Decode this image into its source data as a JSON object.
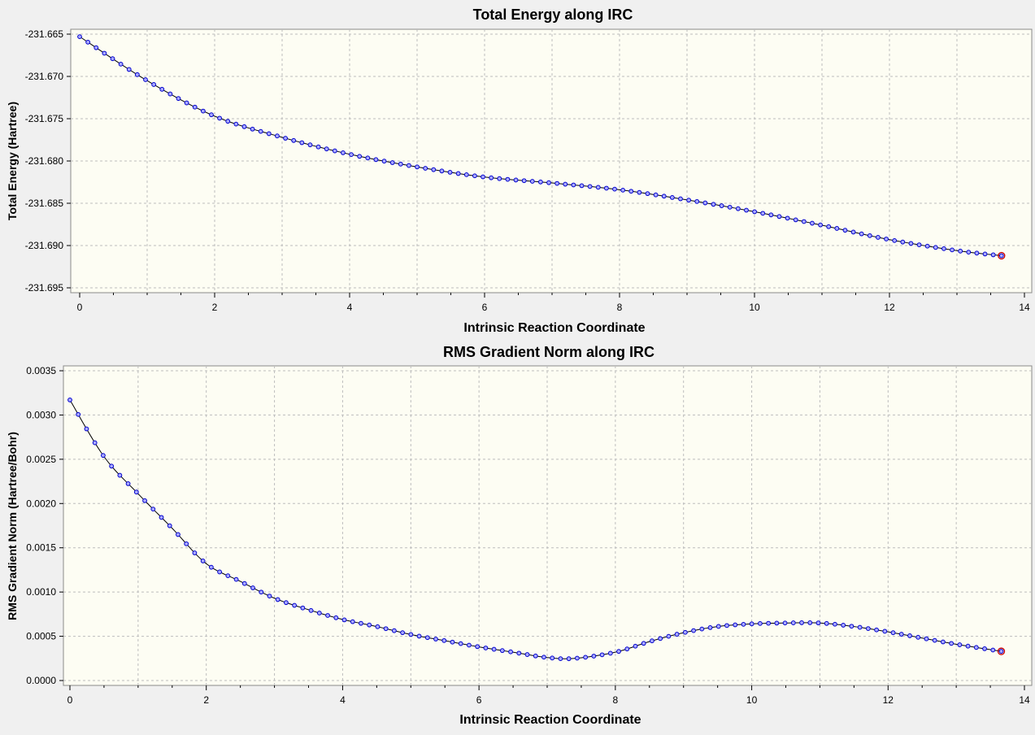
{
  "chart_data": [
    {
      "type": "line",
      "title": "Total Energy along IRC",
      "xlabel": "Intrinsic Reaction Coordinate",
      "ylabel": "Total Energy (Hartree)",
      "xlim": [
        0,
        14
      ],
      "ylim": [
        -231.695,
        -231.665
      ],
      "xticks": [
        0,
        2,
        4,
        6,
        8,
        10,
        12,
        14
      ],
      "xtick_labels": [
        "0",
        "2",
        "4",
        "6",
        "8",
        "10",
        "12",
        "14"
      ],
      "yticks": [
        -231.665,
        -231.67,
        -231.675,
        -231.68,
        -231.685,
        -231.69,
        -231.695
      ],
      "ytick_labels": [
        "-231.665",
        "-231.670",
        "-231.675",
        "-231.680",
        "-231.685",
        "-231.690",
        "-231.695"
      ],
      "grid": true,
      "x": [
        0,
        1,
        2,
        3,
        4,
        5,
        6,
        7,
        8,
        9,
        10,
        11,
        12,
        13,
        13.66
      ],
      "values": [
        -231.6653,
        -231.6705,
        -231.6747,
        -231.6772,
        -231.6792,
        -231.6807,
        -231.6819,
        -231.6826,
        -231.6834,
        -231.6846,
        -231.686,
        -231.6876,
        -231.6893,
        -231.6906,
        -231.6912
      ],
      "highlight": {
        "x": 13.66,
        "y": -231.6912,
        "color": "#cc0000"
      },
      "colors": {
        "line": "#000000",
        "marker_stroke": "#0000cc",
        "marker_fill": "#aaaaff",
        "background": "#fdfdf3"
      }
    },
    {
      "type": "line",
      "title": "RMS Gradient Norm along IRC",
      "xlabel": "Intrinsic Reaction Coordinate",
      "ylabel": "RMS Gradient Norm (Hartree/Bohr)",
      "xlim": [
        0,
        14
      ],
      "ylim": [
        0,
        0.0035
      ],
      "xticks": [
        0,
        2,
        4,
        6,
        8,
        10,
        12,
        14
      ],
      "xtick_labels": [
        "0",
        "2",
        "4",
        "6",
        "8",
        "10",
        "12",
        "14"
      ],
      "yticks": [
        0,
        0.0005,
        0.001,
        0.0015,
        0.002,
        0.0025,
        0.003,
        0.0035
      ],
      "ytick_labels": [
        "0.0000",
        "0.0005",
        "0.0010",
        "0.0015",
        "0.0020",
        "0.0025",
        "0.0030",
        "0.0035"
      ],
      "grid": true,
      "x": [
        0,
        0.5,
        1,
        1.5,
        2,
        2.5,
        3,
        3.5,
        4,
        4.5,
        5,
        5.5,
        6,
        6.5,
        7,
        7.4,
        8,
        8.5,
        9,
        9.5,
        10,
        10.5,
        11,
        11.5,
        12,
        12.5,
        13,
        13.66
      ],
      "values": [
        0.00317,
        0.00253,
        0.00211,
        0.00172,
        0.00132,
        0.00112,
        0.00093,
        0.0008,
        0.00069,
        0.00061,
        0.00052,
        0.00045,
        0.00038,
        0.00032,
        0.00026,
        0.00025,
        0.00032,
        0.00044,
        0.00054,
        0.00061,
        0.00064,
        0.00065,
        0.00065,
        0.00061,
        0.00055,
        0.00048,
        0.00041,
        0.00033
      ],
      "highlight": {
        "x": 13.66,
        "y": 0.00033,
        "color": "#cc0000"
      },
      "colors": {
        "line": "#000000",
        "marker_stroke": "#0000cc",
        "marker_fill": "#aaaaff",
        "background": "#fdfdf3"
      }
    }
  ]
}
